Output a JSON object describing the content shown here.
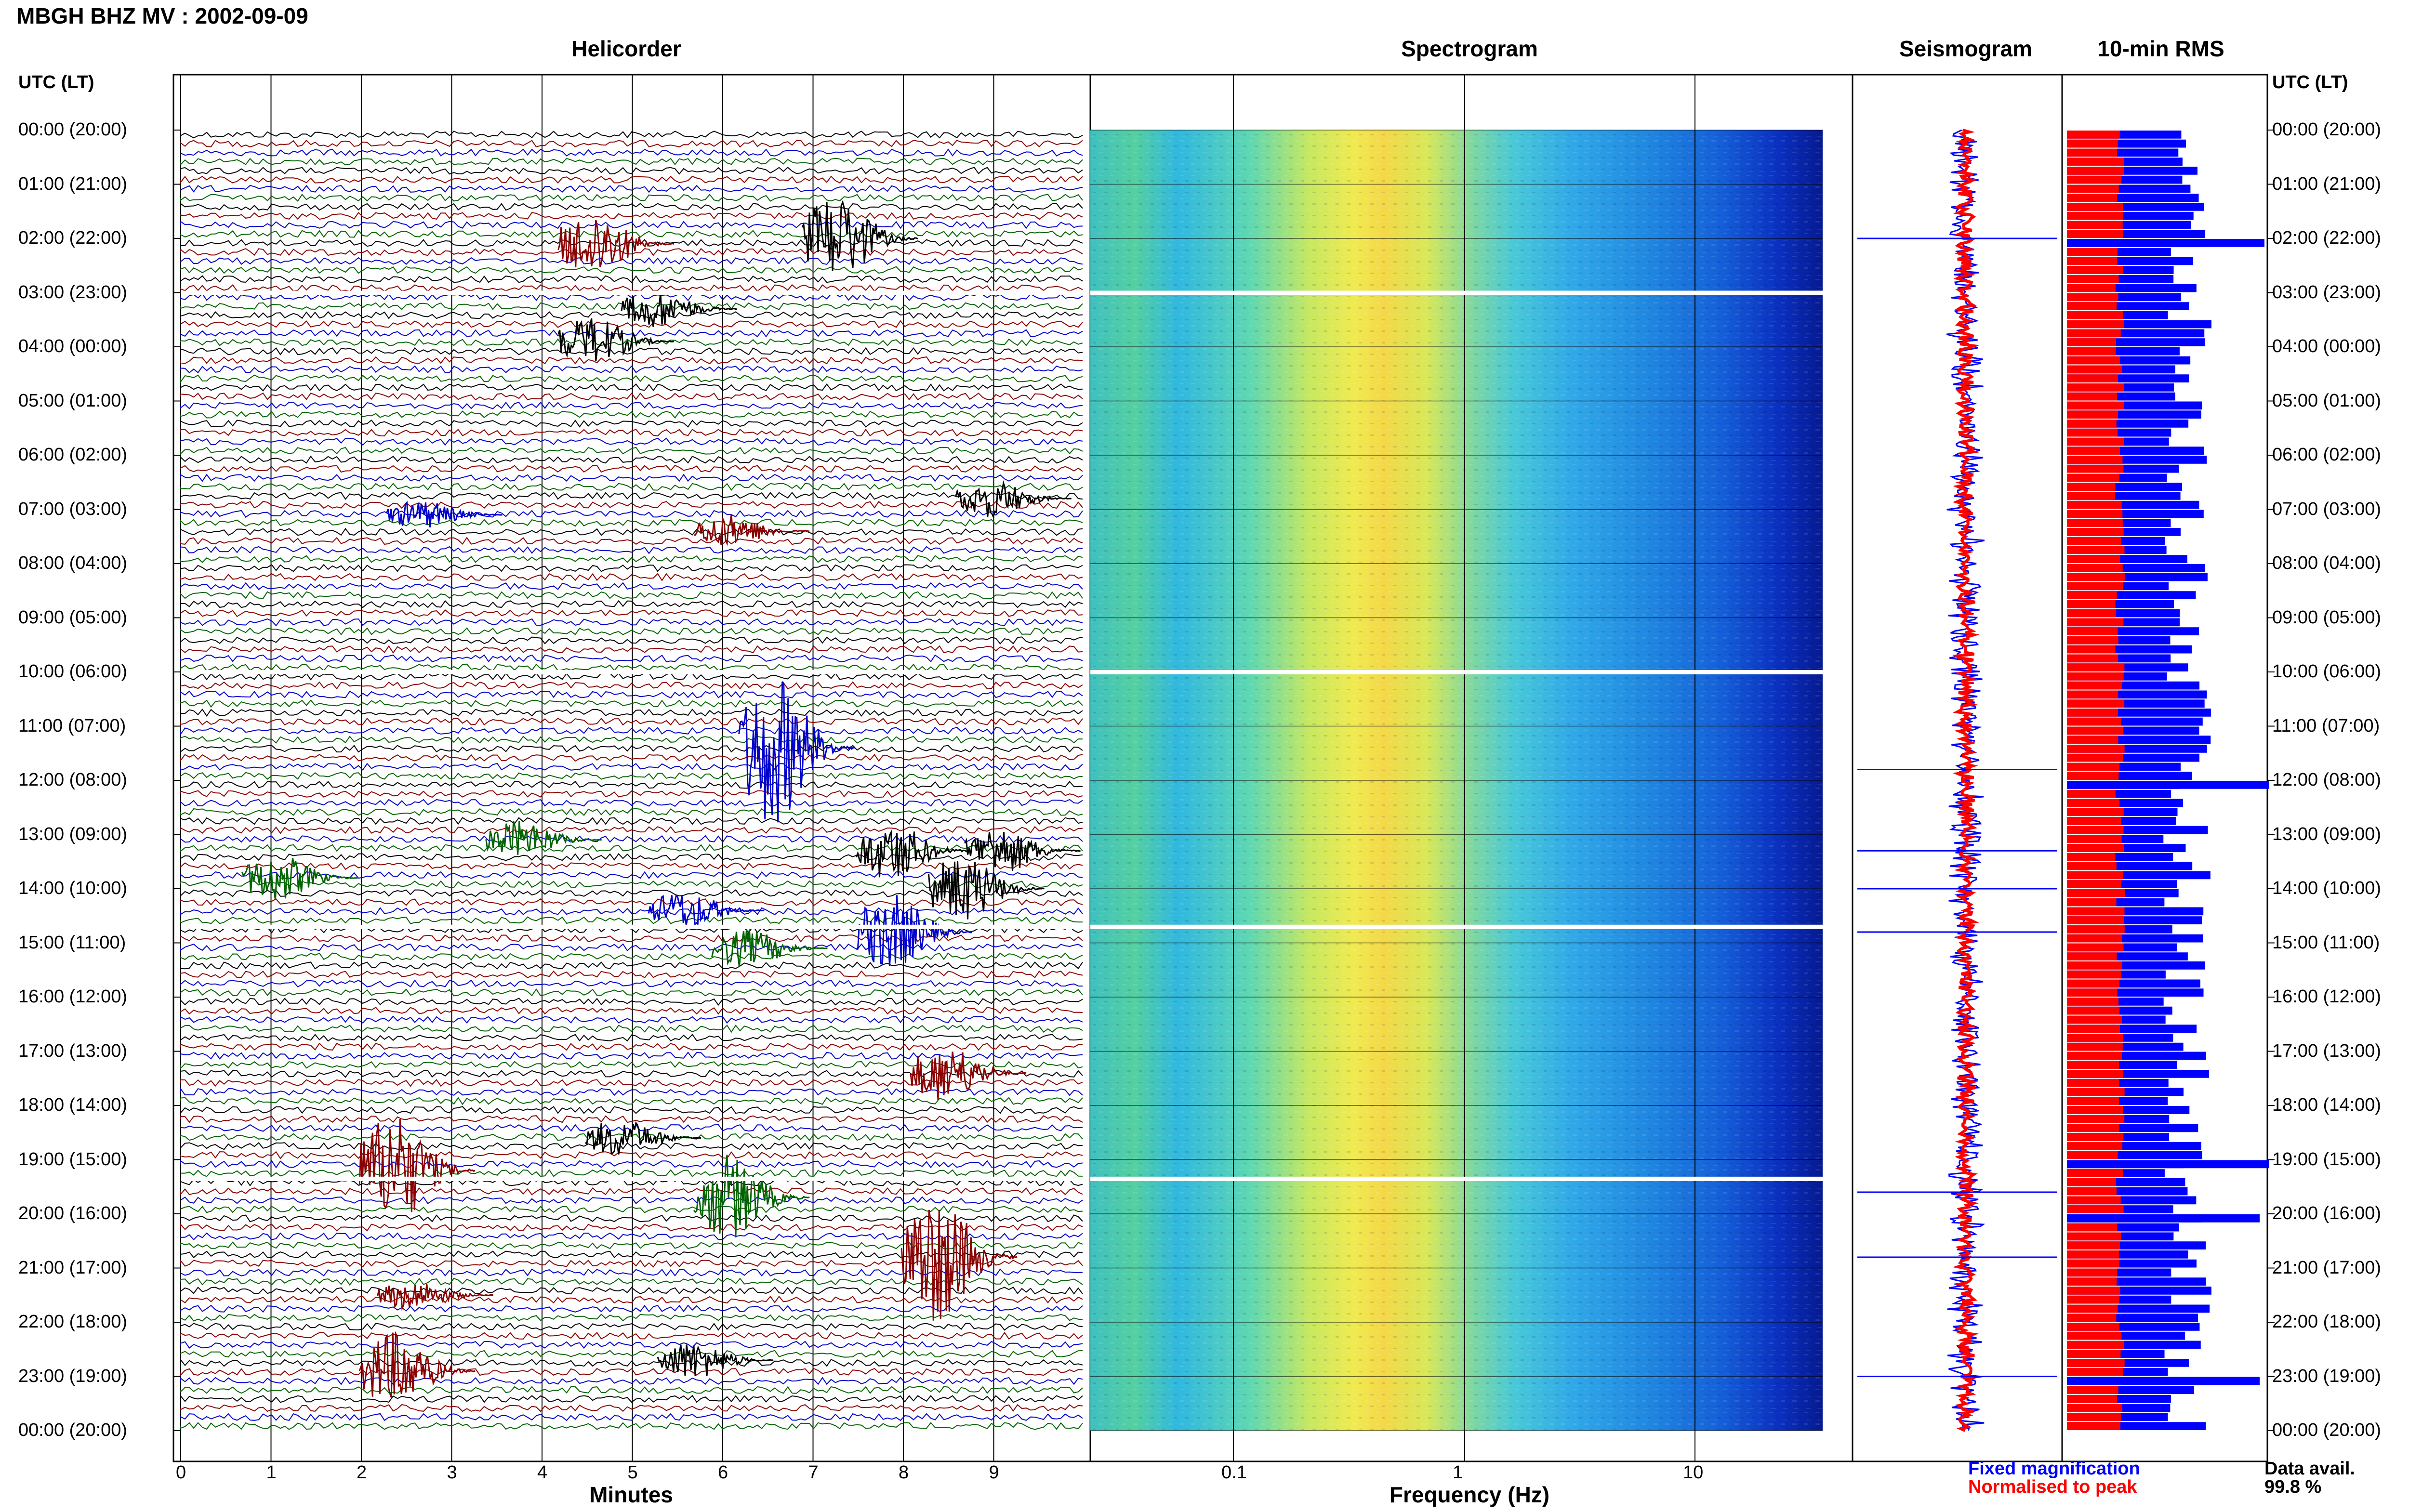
{
  "header": {
    "title": "MBGH BHZ MV : 2002-09-09"
  },
  "panels": {
    "helicorder": "Helicorder",
    "spectrogram": "Spectrogram",
    "seismogram": "Seismogram",
    "rms": "10-min RMS"
  },
  "axes": {
    "time_label_left": "UTC (LT)",
    "time_label_right": "UTC (LT)",
    "minutes_label": "Minutes",
    "frequency_label": "Frequency (Hz)",
    "minutes_ticks": [
      "0",
      "1",
      "2",
      "3",
      "4",
      "5",
      "6",
      "7",
      "8",
      "9"
    ],
    "frequency_ticks": [
      "0.1",
      "1",
      "10"
    ],
    "time_ticks": [
      "00:00 (20:00)",
      "01:00 (21:00)",
      "02:00 (22:00)",
      "03:00 (23:00)",
      "04:00 (00:00)",
      "05:00 (01:00)",
      "06:00 (02:00)",
      "07:00 (03:00)",
      "08:00 (04:00)",
      "09:00 (05:00)",
      "10:00 (06:00)",
      "11:00 (07:00)",
      "12:00 (08:00)",
      "13:00 (09:00)",
      "14:00 (10:00)",
      "15:00 (11:00)",
      "16:00 (12:00)",
      "17:00 (13:00)",
      "18:00 (14:00)",
      "19:00 (15:00)",
      "20:00 (16:00)",
      "21:00 (17:00)",
      "22:00 (18:00)",
      "23:00 (19:00)",
      "00:00 (20:00)"
    ]
  },
  "legend": {
    "fixed": "Fixed magnification",
    "normalised": "Normalised to peak",
    "avail_label": "Data avail.",
    "avail_value": "99.8 %"
  },
  "colors": {
    "trace_cycle": [
      "#000000",
      "#8b0000",
      "#0000cc",
      "#006400"
    ],
    "fixed": "#0000ff",
    "normalised": "#ff0000"
  }
}
